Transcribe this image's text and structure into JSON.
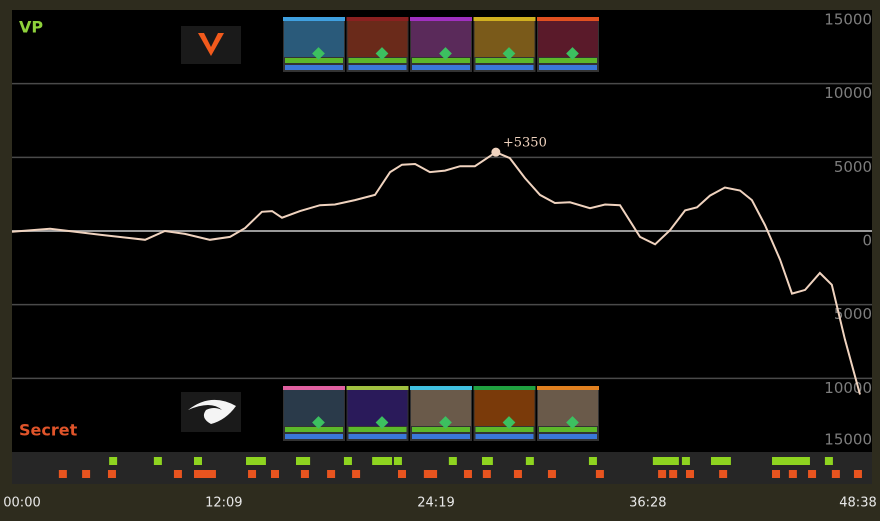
{
  "chart_data": {
    "type": "line",
    "teams": {
      "top": "VP",
      "bottom": "Secret"
    },
    "x": [
      0,
      131,
      303,
      458,
      526,
      595,
      681,
      750,
      802,
      860,
      895,
      929,
      991,
      1060,
      1111,
      1180,
      1249,
      1301,
      1342,
      1387,
      1438,
      1490,
      1542,
      1593,
      1665,
      1713,
      1765,
      1817,
      1868,
      1920,
      1989,
      2041,
      2092,
      2161,
      2213,
      2264,
      2316,
      2357,
      2402,
      2453,
      2505,
      2546,
      2591,
      2643,
      2684,
      2729,
      2780,
      2821,
      2866,
      2918
    ],
    "series": [
      {
        "color": "#f0d3bf",
        "values": [
          -50,
          150,
          -250,
          -600,
          0,
          -200,
          -600,
          -400,
          200,
          1300,
          1350,
          900,
          1350,
          1750,
          1800,
          2100,
          2450,
          4000,
          4500,
          4550,
          4000,
          4100,
          4400,
          4400,
          5350,
          4950,
          3600,
          2450,
          1900,
          1950,
          1550,
          1800,
          1750,
          -400,
          -900,
          50,
          1400,
          1600,
          2400,
          2950,
          2750,
          2100,
          400,
          -1950,
          -4250,
          -4000,
          -2850,
          -3650,
          -7350,
          -11100
        ]
      }
    ],
    "annotation": {
      "text": "+5350",
      "point": 24
    },
    "xlim": [
      0,
      2918
    ],
    "xticks": [
      {
        "value": 0,
        "label": "00:00"
      },
      {
        "value": 729,
        "label": "12:09"
      },
      {
        "value": 1459,
        "label": "24:19"
      },
      {
        "value": 2188,
        "label": "36:28"
      },
      {
        "value": 2918,
        "label": "48:38"
      }
    ],
    "ylim": [
      -15000,
      15000
    ],
    "yticks": [
      15000,
      10000,
      5000,
      0,
      {
        "value": -5000,
        "label": "5000"
      },
      {
        "value": -10000,
        "label": "10000"
      },
      {
        "value": -15000,
        "label": "15000"
      }
    ],
    "grid": true,
    "events": {
      "top": {
        "color": "#8ed420",
        "times": [
          348,
          502,
          640,
          819,
          840,
          860,
          991,
          1012,
          1156,
          1253,
          1273,
          1294,
          1328,
          1517,
          1631,
          1641,
          1782,
          1999,
          2219,
          2240,
          2261,
          2281,
          2319,
          2419,
          2440,
          2460,
          2629,
          2650,
          2670,
          2691,
          2712,
          2732,
          2811
        ]
      },
      "bottom": {
        "color": "#e8541f",
        "times": [
          175,
          255,
          344,
          571,
          640,
          664,
          688,
          826,
          905,
          1008,
          1098,
          1184,
          1342,
          1431,
          1449,
          1569,
          1634,
          1741,
          1858,
          2023,
          2237,
          2275,
          2333,
          2447,
          2629,
          2687,
          2753,
          2835,
          2911
        ]
      }
    }
  }
}
